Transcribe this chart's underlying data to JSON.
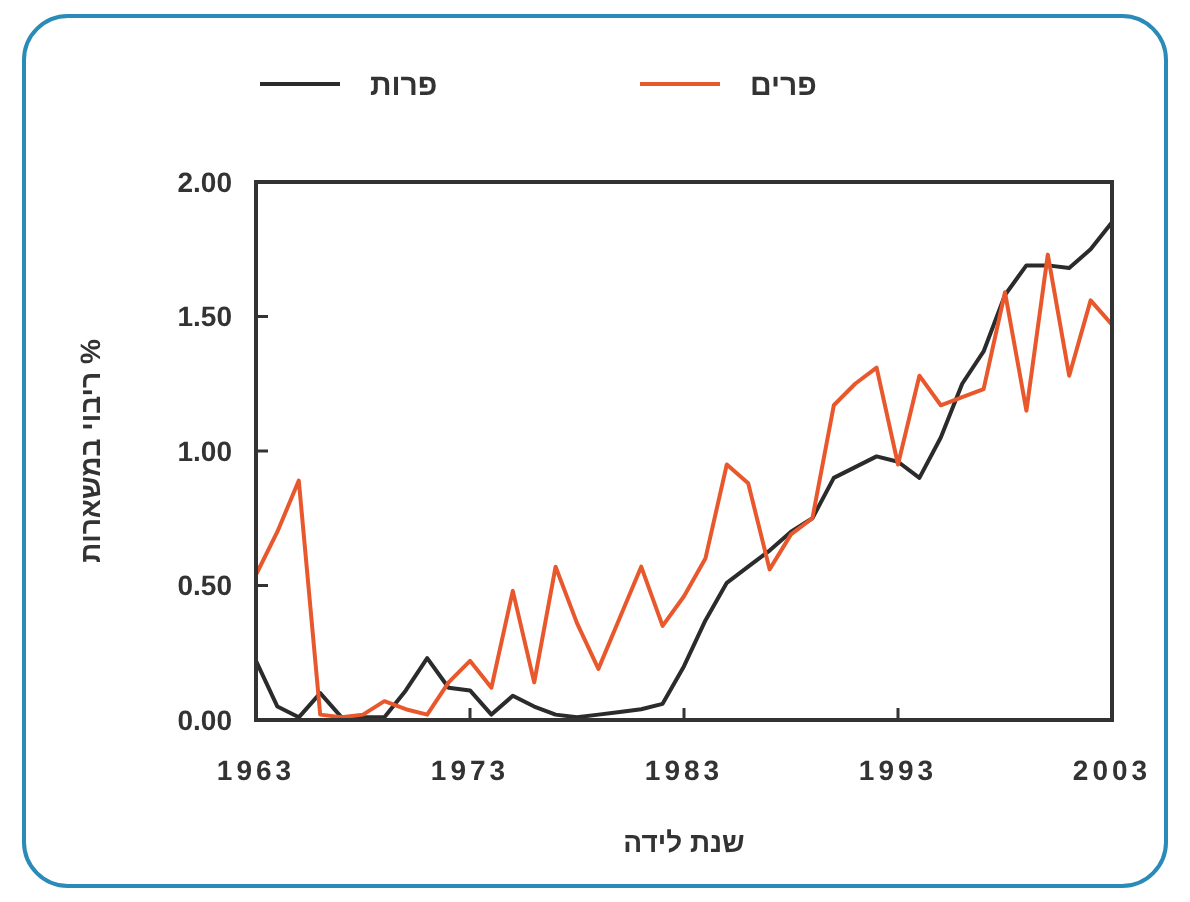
{
  "chart_data": {
    "type": "line",
    "xlabel": "שנת לידה",
    "ylabel": "% ריבוי במשארות",
    "x": [
      1963,
      1964,
      1965,
      1966,
      1967,
      1968,
      1969,
      1970,
      1971,
      1972,
      1973,
      1974,
      1975,
      1976,
      1977,
      1978,
      1979,
      1980,
      1981,
      1982,
      1983,
      1984,
      1985,
      1986,
      1987,
      1988,
      1989,
      1990,
      1991,
      1992,
      1993,
      1994,
      1995,
      1996,
      1997,
      1998,
      1999,
      2000,
      2001,
      2002,
      2003
    ],
    "xlim": [
      1963,
      2003
    ],
    "xticks": [
      1963,
      1973,
      1983,
      1993,
      2003
    ],
    "ylim": [
      0,
      2
    ],
    "yticks": [
      {
        "value": 0,
        "label": "0.00"
      },
      {
        "value": 0.5,
        "label": "0.50"
      },
      {
        "value": 1,
        "label": "1.00"
      },
      {
        "value": 1.5,
        "label": "1.50"
      },
      {
        "value": 2,
        "label": "2.00"
      }
    ],
    "series": [
      {
        "name": "פרות",
        "color": "#2b2b2b",
        "values": [
          0.22,
          0.05,
          0.01,
          0.1,
          0.01,
          0.01,
          0.01,
          0.11,
          0.23,
          0.12,
          0.11,
          0.02,
          0.09,
          0.05,
          0.02,
          0.01,
          0.02,
          0.03,
          0.04,
          0.06,
          0.2,
          0.37,
          0.51,
          0.57,
          0.63,
          0.7,
          0.75,
          0.9,
          0.94,
          0.98,
          0.96,
          0.9,
          1.05,
          1.25,
          1.37,
          1.58,
          1.69,
          1.69,
          1.68,
          1.75,
          1.85
        ]
      },
      {
        "name": "פרים",
        "color": "#e8582c",
        "values": [
          0.54,
          0.7,
          0.89,
          0.02,
          0.01,
          0.02,
          0.07,
          0.04,
          0.02,
          0.14,
          0.22,
          0.12,
          0.48,
          0.14,
          0.57,
          0.36,
          0.19,
          0.38,
          0.57,
          0.35,
          0.46,
          0.6,
          0.95,
          0.88,
          0.56,
          0.69,
          0.75,
          1.17,
          1.25,
          1.31,
          0.95,
          1.28,
          1.17,
          1.2,
          1.23,
          1.59,
          1.15,
          1.73,
          1.28,
          1.56,
          1.47
        ]
      }
    ],
    "legend": "top",
    "grid": false,
    "marker": "none",
    "line_style": "solid"
  }
}
